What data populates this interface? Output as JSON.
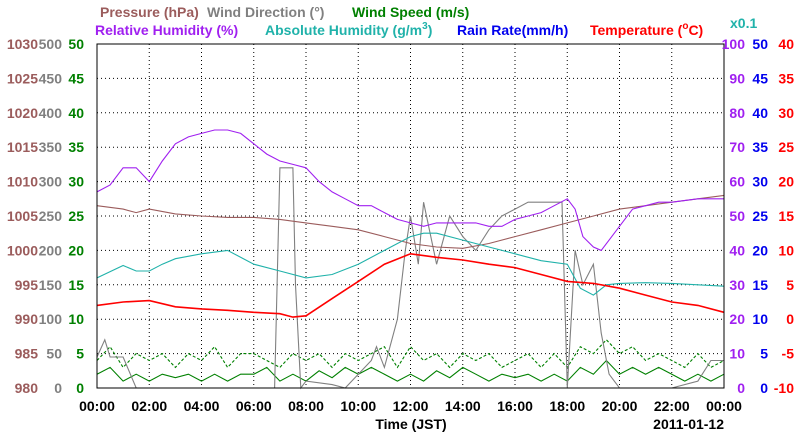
{
  "chart_data": {
    "type": "line",
    "date": "2011-01-12",
    "xlabel": "Time (JST)",
    "x_ticks": [
      "00:00",
      "02:00",
      "04:00",
      "06:00",
      "08:00",
      "10:00",
      "12:00",
      "14:00",
      "16:00",
      "18:00",
      "20:00",
      "22:00",
      "00:00"
    ],
    "xlim": [
      0,
      24
    ],
    "legend_row1": [
      {
        "label": "Pressure (hPa)",
        "color": "#9b5c5c"
      },
      {
        "label": "Wind Direction (°)",
        "color": "#808080"
      },
      {
        "label": "Wind Speed (m/s)",
        "color": "#008000"
      }
    ],
    "legend_row2": [
      {
        "label": "Relative Humidity (%)",
        "color": "#a020f0"
      },
      {
        "label": "Absolute Humidity (g/m",
        "sup": "3",
        "close": ")",
        "color": "#20b2aa"
      },
      {
        "label": "Rain Rate(mm/h)",
        "color": "#0000ee"
      },
      {
        "label": "Temperature (",
        "deg": "o",
        "close": "C)",
        "color": "#ff0000"
      }
    ],
    "rain_scale_note": "x0.1",
    "axes": {
      "pressure": {
        "color": "#9b5c5c",
        "ticks": [
          "1030",
          "1025",
          "1020",
          "1015",
          "1010",
          "1005",
          "1000",
          "995",
          "990",
          "985",
          "980"
        ],
        "ylim": [
          980,
          1030
        ]
      },
      "wind_direction": {
        "color": "#808080",
        "ticks": [
          "500",
          "450",
          "400",
          "350",
          "300",
          "250",
          "200",
          "150",
          "100",
          "50",
          "0"
        ],
        "ylim": [
          0,
          500
        ]
      },
      "wind_speed": {
        "color": "#008000",
        "ticks": [
          "50",
          "45",
          "40",
          "35",
          "30",
          "25",
          "20",
          "15",
          "10",
          "5",
          "0"
        ],
        "ylim": [
          0,
          50
        ]
      },
      "relative_humidity": {
        "color": "#a020f0",
        "ticks": [
          "100",
          "90",
          "80",
          "70",
          "60",
          "50",
          "40",
          "30",
          "20",
          "10",
          "0"
        ],
        "ylim": [
          0,
          100
        ]
      },
      "rain_rate": {
        "color": "#0000ee",
        "ticks": [
          "50",
          "45",
          "40",
          "35",
          "30",
          "25",
          "20",
          "15",
          "10",
          "5",
          "0"
        ],
        "ylim": [
          0,
          50
        ]
      },
      "temperature": {
        "color": "#ff0000",
        "ticks": [
          "40",
          "35",
          "30",
          "25",
          "20",
          "15",
          "10",
          "5",
          "0",
          "-5",
          "-10"
        ],
        "ylim": [
          -10,
          40
        ]
      }
    },
    "series": [
      {
        "name": "Relative Humidity",
        "axis": "relative_humidity",
        "color": "#a020f0",
        "points": [
          [
            0,
            57
          ],
          [
            0.5,
            59
          ],
          [
            1,
            64
          ],
          [
            1.5,
            64
          ],
          [
            2,
            60
          ],
          [
            2.5,
            66
          ],
          [
            3,
            71
          ],
          [
            3.5,
            73
          ],
          [
            4,
            74
          ],
          [
            4.5,
            75
          ],
          [
            5,
            75
          ],
          [
            5.5,
            74
          ],
          [
            6,
            71
          ],
          [
            6.5,
            68
          ],
          [
            7,
            66
          ],
          [
            7.5,
            65
          ],
          [
            8,
            64
          ],
          [
            8.5,
            60
          ],
          [
            9,
            57
          ],
          [
            9.5,
            55
          ],
          [
            10,
            53
          ],
          [
            10.5,
            53
          ],
          [
            11,
            51
          ],
          [
            11.5,
            49
          ],
          [
            12,
            48
          ],
          [
            12.5,
            47
          ],
          [
            13,
            48
          ],
          [
            13.5,
            48
          ],
          [
            14,
            48
          ],
          [
            14.5,
            48
          ],
          [
            15,
            47
          ],
          [
            15.5,
            47
          ],
          [
            16,
            49
          ],
          [
            16.5,
            50
          ],
          [
            17,
            51
          ],
          [
            17.5,
            53
          ],
          [
            18,
            55
          ],
          [
            18.3,
            52
          ],
          [
            18.6,
            44
          ],
          [
            19,
            41
          ],
          [
            19.3,
            40
          ],
          [
            19.6,
            43
          ],
          [
            20,
            47
          ],
          [
            20.5,
            52
          ],
          [
            21,
            53
          ],
          [
            21.5,
            54
          ],
          [
            22,
            54
          ],
          [
            23,
            55
          ],
          [
            24,
            55
          ]
        ]
      },
      {
        "name": "Pressure",
        "axis": "pressure",
        "color": "#9b5c5c",
        "points": [
          [
            0,
            1006.5
          ],
          [
            1,
            1006
          ],
          [
            1.5,
            1005.5
          ],
          [
            2,
            1006
          ],
          [
            3,
            1005.3
          ],
          [
            4,
            1005
          ],
          [
            5,
            1004.8
          ],
          [
            6,
            1004.8
          ],
          [
            7,
            1004.5
          ],
          [
            8,
            1004
          ],
          [
            9,
            1003.5
          ],
          [
            10,
            1003
          ],
          [
            11,
            1002
          ],
          [
            12,
            1001
          ],
          [
            13,
            1000.5
          ],
          [
            14,
            1000.3
          ],
          [
            15,
            1001
          ],
          [
            16,
            1002
          ],
          [
            17,
            1003
          ],
          [
            18,
            1004
          ],
          [
            19,
            1005
          ],
          [
            20,
            1006
          ],
          [
            21,
            1006.5
          ],
          [
            22,
            1007
          ],
          [
            23,
            1007.5
          ],
          [
            24,
            1008
          ]
        ]
      },
      {
        "name": "Absolute Humidity",
        "axis": "wind_speed",
        "color": "#20b2aa",
        "points": [
          [
            0,
            16
          ],
          [
            1,
            17.8
          ],
          [
            1.5,
            17
          ],
          [
            2,
            17
          ],
          [
            2.5,
            18
          ],
          [
            3,
            18.8
          ],
          [
            4,
            19.5
          ],
          [
            5,
            20
          ],
          [
            6,
            18
          ],
          [
            7,
            17
          ],
          [
            8,
            16
          ],
          [
            9,
            16.5
          ],
          [
            10,
            18
          ],
          [
            11,
            20
          ],
          [
            12,
            22
          ],
          [
            12.5,
            22.5
          ],
          [
            13,
            22.5
          ],
          [
            14,
            21.5
          ],
          [
            15,
            20.5
          ],
          [
            16,
            19.5
          ],
          [
            17,
            18.5
          ],
          [
            18,
            18
          ],
          [
            18.5,
            14.5
          ],
          [
            19,
            13.5
          ],
          [
            19.5,
            15
          ],
          [
            20,
            15.2
          ],
          [
            21,
            15.3
          ],
          [
            22,
            15.2
          ],
          [
            23,
            15
          ],
          [
            24,
            14.8
          ]
        ]
      },
      {
        "name": "Temperature",
        "axis": "temperature",
        "color": "#ff0000",
        "points": [
          [
            0,
            2
          ],
          [
            1,
            2.5
          ],
          [
            2,
            2.7
          ],
          [
            3,
            1.8
          ],
          [
            4,
            1.5
          ],
          [
            5,
            1.3
          ],
          [
            6,
            1
          ],
          [
            7,
            0.8
          ],
          [
            7.5,
            0.3
          ],
          [
            8,
            0.5
          ],
          [
            9,
            3
          ],
          [
            10,
            5.5
          ],
          [
            11,
            8
          ],
          [
            12,
            9.5
          ],
          [
            13,
            9
          ],
          [
            14,
            8.6
          ],
          [
            15,
            8
          ],
          [
            16,
            7.5
          ],
          [
            17,
            6.5
          ],
          [
            18,
            5.5
          ],
          [
            19,
            5.2
          ],
          [
            20,
            4.5
          ],
          [
            21,
            3.5
          ],
          [
            22,
            2.5
          ],
          [
            23,
            2
          ],
          [
            24,
            1
          ]
        ]
      },
      {
        "name": "Wind Direction",
        "axis": "wind_direction",
        "color": "#808080",
        "points": [
          [
            0,
            45
          ],
          [
            0.3,
            70
          ],
          [
            0.5,
            45
          ],
          [
            1,
            45
          ],
          [
            1.5,
            0
          ],
          [
            2,
            0
          ],
          [
            3,
            0
          ],
          [
            4,
            0
          ],
          [
            5,
            0
          ],
          [
            6,
            0
          ],
          [
            6.8,
            0
          ],
          [
            7,
            320
          ],
          [
            7.5,
            320
          ],
          [
            7.6,
            150
          ],
          [
            7.8,
            0
          ],
          [
            8,
            10
          ],
          [
            9,
            5
          ],
          [
            9.5,
            0
          ],
          [
            10.5,
            40
          ],
          [
            10.7,
            60
          ],
          [
            11,
            30
          ],
          [
            11.5,
            100
          ],
          [
            11.8,
            200
          ],
          [
            12,
            250
          ],
          [
            12.3,
            180
          ],
          [
            12.5,
            270
          ],
          [
            13,
            180
          ],
          [
            13.5,
            250
          ],
          [
            14,
            220
          ],
          [
            14.5,
            200
          ],
          [
            15,
            230
          ],
          [
            15.5,
            250
          ],
          [
            16,
            260
          ],
          [
            16.5,
            270
          ],
          [
            17,
            270
          ],
          [
            17.5,
            270
          ],
          [
            17.8,
            270
          ],
          [
            18,
            0
          ],
          [
            18.3,
            200
          ],
          [
            18.6,
            150
          ],
          [
            19,
            180
          ],
          [
            19.3,
            80
          ],
          [
            19.6,
            20
          ],
          [
            20,
            0
          ],
          [
            21,
            0
          ],
          [
            22,
            0
          ],
          [
            23,
            10
          ],
          [
            23.5,
            40
          ],
          [
            24,
            40
          ]
        ]
      },
      {
        "name": "Wind Speed",
        "axis": "wind_speed",
        "color": "#008000",
        "points": [
          [
            0,
            2
          ],
          [
            0.5,
            3
          ],
          [
            1,
            1
          ],
          [
            1.5,
            2
          ],
          [
            2,
            1
          ],
          [
            2.5,
            2
          ],
          [
            3,
            1.5
          ],
          [
            3.5,
            2
          ],
          [
            4,
            1
          ],
          [
            4.5,
            2
          ],
          [
            5,
            1
          ],
          [
            5.5,
            2
          ],
          [
            6,
            2
          ],
          [
            6.5,
            3
          ],
          [
            7,
            1
          ],
          [
            7.5,
            2
          ],
          [
            8,
            1
          ],
          [
            8.5,
            2.5
          ],
          [
            9,
            1.5
          ],
          [
            9.5,
            3
          ],
          [
            10,
            2
          ],
          [
            10.5,
            3
          ],
          [
            11,
            2
          ],
          [
            11.5,
            1
          ],
          [
            12,
            2
          ],
          [
            12.5,
            1
          ],
          [
            13,
            2.5
          ],
          [
            13.5,
            1.5
          ],
          [
            14,
            3
          ],
          [
            14.5,
            2
          ],
          [
            15,
            1
          ],
          [
            15.5,
            2
          ],
          [
            16,
            1.5
          ],
          [
            16.5,
            2
          ],
          [
            17,
            1
          ],
          [
            17.5,
            2
          ],
          [
            18,
            1
          ],
          [
            18.5,
            3
          ],
          [
            19,
            2
          ],
          [
            19.5,
            4
          ],
          [
            20,
            2
          ],
          [
            20.5,
            3
          ],
          [
            21,
            2
          ],
          [
            21.5,
            3
          ],
          [
            22,
            2
          ],
          [
            22.5,
            1
          ],
          [
            23,
            2
          ],
          [
            23.5,
            1
          ],
          [
            24,
            2
          ]
        ]
      },
      {
        "name": "Wind Gust",
        "axis": "wind_speed",
        "color": "#008000",
        "dashed": true,
        "points": [
          [
            0,
            4
          ],
          [
            0.5,
            6
          ],
          [
            1,
            3
          ],
          [
            1.5,
            5
          ],
          [
            2,
            4
          ],
          [
            2.5,
            5
          ],
          [
            3,
            3
          ],
          [
            3.5,
            5
          ],
          [
            4,
            4
          ],
          [
            4.5,
            6
          ],
          [
            5,
            3
          ],
          [
            5.5,
            5
          ],
          [
            6,
            5
          ],
          [
            6.5,
            4
          ],
          [
            7,
            3
          ],
          [
            7.5,
            5
          ],
          [
            8,
            4
          ],
          [
            8.5,
            5
          ],
          [
            9,
            3
          ],
          [
            9.5,
            5
          ],
          [
            10,
            4
          ],
          [
            10.5,
            5
          ],
          [
            11,
            6
          ],
          [
            11.5,
            3
          ],
          [
            12,
            6
          ],
          [
            12.5,
            4
          ],
          [
            13,
            5
          ],
          [
            13.5,
            3
          ],
          [
            14,
            5
          ],
          [
            14.5,
            4
          ],
          [
            15,
            5
          ],
          [
            15.5,
            3
          ],
          [
            16,
            4
          ],
          [
            16.5,
            5
          ],
          [
            17,
            3
          ],
          [
            17.5,
            5
          ],
          [
            18,
            3
          ],
          [
            18.5,
            6
          ],
          [
            19,
            5
          ],
          [
            19.5,
            7
          ],
          [
            20,
            5
          ],
          [
            20.5,
            6
          ],
          [
            21,
            4
          ],
          [
            21.5,
            5
          ],
          [
            22,
            4
          ],
          [
            22.5,
            3
          ],
          [
            23,
            5
          ],
          [
            23.5,
            3
          ],
          [
            24,
            4
          ]
        ]
      }
    ]
  }
}
